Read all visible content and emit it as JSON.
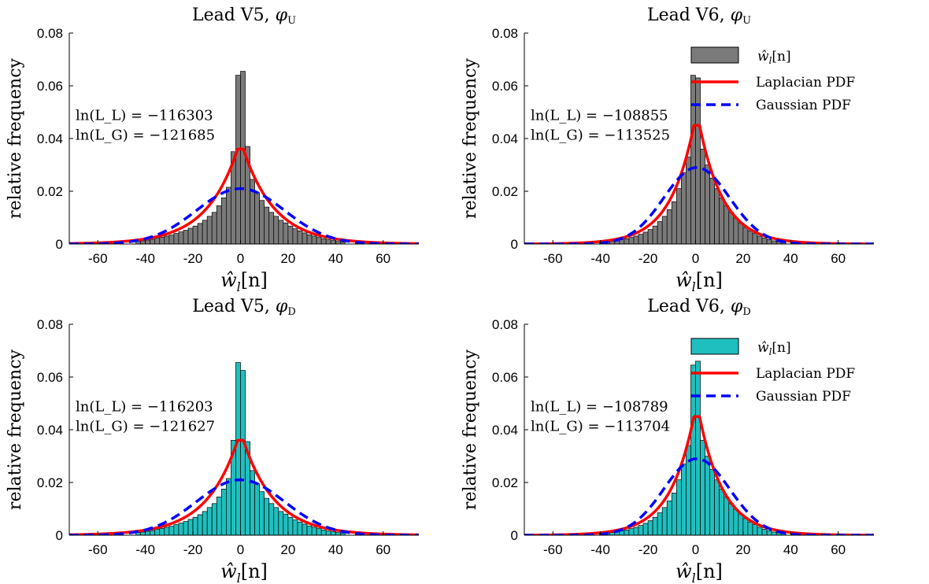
{
  "figure": {
    "background": "#ffffff"
  },
  "chart_data": [
    {
      "type": "bar",
      "title": "Lead V5, φU",
      "title_text": "Lead V5, ",
      "title_symbol": "φ",
      "title_sub": "U",
      "xlabel_main": "ŵ",
      "xlabel_sub": "l",
      "xlabel_tail": "[n]",
      "ylabel": "relative frequency",
      "xlim": [
        -72,
        75
      ],
      "ylim": [
        0,
        0.08
      ],
      "xticks": [
        -60,
        -40,
        -20,
        0,
        20,
        40,
        60
      ],
      "yticks": [
        0,
        0.02,
        0.04,
        0.06,
        0.08
      ],
      "ytick_labels": [
        "0",
        "0.02",
        "0.04",
        "0.06",
        "0.08"
      ],
      "hist_color": "#7a7a7a",
      "bin_width": 2,
      "bin_centers": [
        -43,
        -41,
        -39,
        -37,
        -35,
        -33,
        -31,
        -29,
        -27,
        -25,
        -23,
        -21,
        -19,
        -17,
        -15,
        -13,
        -11,
        -9,
        -7,
        -5,
        -3,
        -1,
        1,
        3,
        5,
        7,
        9,
        11,
        13,
        15,
        17,
        19,
        21,
        23,
        25,
        27,
        29,
        31,
        33,
        35,
        37,
        39,
        41,
        43
      ],
      "values": [
        0.001,
        0.0012,
        0.0015,
        0.0018,
        0.0022,
        0.0026,
        0.003,
        0.0034,
        0.004,
        0.0046,
        0.0052,
        0.006,
        0.0068,
        0.0078,
        0.009,
        0.0105,
        0.012,
        0.0145,
        0.0175,
        0.0215,
        0.035,
        0.064,
        0.0655,
        0.037,
        0.0245,
        0.0195,
        0.0165,
        0.014,
        0.012,
        0.0105,
        0.009,
        0.008,
        0.0068,
        0.0058,
        0.005,
        0.0042,
        0.0035,
        0.003,
        0.0025,
        0.002,
        0.0016,
        0.0013,
        0.001,
        0.0008
      ],
      "laplace": {
        "mu": 0,
        "b": 13.3,
        "peak": 0.036,
        "color": "#ff0000",
        "name": "Laplacian PDF"
      },
      "gauss": {
        "mu": 0,
        "sigma": 18.5,
        "peak": 0.021,
        "color": "#0000ff",
        "name": "Gaussian PDF"
      },
      "annotations": [
        "ln(L_L) = −116303",
        "ln(L_G) = −121685"
      ],
      "legend": null
    },
    {
      "type": "bar",
      "title": "Lead V6, φU",
      "title_text": "Lead V6, ",
      "title_symbol": "φ",
      "title_sub": "U",
      "xlabel_main": "ŵ",
      "xlabel_sub": "l",
      "xlabel_tail": "[n]",
      "ylabel": "relative frequency",
      "xlim": [
        -72,
        75
      ],
      "ylim": [
        0,
        0.08
      ],
      "xticks": [
        -60,
        -40,
        -20,
        0,
        20,
        40,
        60
      ],
      "yticks": [
        0,
        0.02,
        0.04,
        0.06,
        0.08
      ],
      "ytick_labels": [
        "0",
        "0.02",
        "0.04",
        "0.06",
        "0.08"
      ],
      "hist_color": "#7a7a7a",
      "bin_width": 2,
      "bin_centers": [
        -37,
        -35,
        -33,
        -31,
        -29,
        -27,
        -25,
        -23,
        -21,
        -19,
        -17,
        -15,
        -13,
        -11,
        -9,
        -7,
        -5,
        -3,
        -1,
        1,
        3,
        5,
        7,
        9,
        11,
        13,
        15,
        17,
        19,
        21,
        23,
        25,
        27,
        29,
        31,
        33,
        35,
        37
      ],
      "values": [
        0.0008,
        0.001,
        0.0013,
        0.0016,
        0.002,
        0.0025,
        0.003,
        0.0037,
        0.0045,
        0.0055,
        0.0068,
        0.0085,
        0.0105,
        0.013,
        0.016,
        0.021,
        0.027,
        0.033,
        0.064,
        0.063,
        0.036,
        0.03,
        0.025,
        0.021,
        0.0175,
        0.0145,
        0.012,
        0.0098,
        0.008,
        0.0063,
        0.005,
        0.004,
        0.003,
        0.0023,
        0.0017,
        0.0012,
        0.0009,
        0.0006
      ],
      "laplace": {
        "mu": 0.5,
        "b": 10.2,
        "peak": 0.045,
        "color": "#ff0000",
        "name": "Laplacian PDF"
      },
      "gauss": {
        "mu": 0.5,
        "sigma": 13.8,
        "peak": 0.029,
        "color": "#0000ff",
        "name": "Gaussian PDF"
      },
      "annotations": [
        "ln(L_L) = −108855",
        "ln(L_G) = −113525"
      ],
      "legend": {
        "placement": "top-right",
        "hist_label_main": "ŵ",
        "hist_label_sub": "l",
        "hist_label_tail": "[n]",
        "laplace": "Laplacian PDF",
        "gauss": "Gaussian PDF"
      }
    },
    {
      "type": "bar",
      "title": "Lead V5, φD",
      "title_text": "Lead V5, ",
      "title_symbol": "φ",
      "title_sub": "D",
      "xlabel_main": "ŵ",
      "xlabel_sub": "l",
      "xlabel_tail": "[n]",
      "ylabel": "relative frequency",
      "xlim": [
        -72,
        75
      ],
      "ylim": [
        0,
        0.08
      ],
      "xticks": [
        -60,
        -40,
        -20,
        0,
        20,
        40,
        60
      ],
      "yticks": [
        0,
        0.02,
        0.04,
        0.06,
        0.08
      ],
      "ytick_labels": [
        "0",
        "0.02",
        "0.04",
        "0.06",
        "0.08"
      ],
      "hist_color": "#1fbfbf",
      "bin_width": 2,
      "bin_centers": [
        -43,
        -41,
        -39,
        -37,
        -35,
        -33,
        -31,
        -29,
        -27,
        -25,
        -23,
        -21,
        -19,
        -17,
        -15,
        -13,
        -11,
        -9,
        -7,
        -5,
        -3,
        -1,
        1,
        3,
        5,
        7,
        9,
        11,
        13,
        15,
        17,
        19,
        21,
        23,
        25,
        27,
        29,
        31,
        33,
        35,
        37,
        39,
        41,
        43
      ],
      "values": [
        0.001,
        0.0012,
        0.0015,
        0.0018,
        0.0022,
        0.0026,
        0.003,
        0.0034,
        0.004,
        0.0046,
        0.0052,
        0.006,
        0.0068,
        0.0078,
        0.009,
        0.0105,
        0.012,
        0.0145,
        0.0175,
        0.0215,
        0.036,
        0.0655,
        0.0625,
        0.0355,
        0.0245,
        0.0195,
        0.0165,
        0.014,
        0.012,
        0.0105,
        0.009,
        0.008,
        0.0068,
        0.0058,
        0.005,
        0.0042,
        0.0035,
        0.003,
        0.0025,
        0.002,
        0.0016,
        0.0013,
        0.001,
        0.0008
      ],
      "laplace": {
        "mu": 0,
        "b": 13.3,
        "peak": 0.036,
        "color": "#ff0000",
        "name": "Laplacian PDF"
      },
      "gauss": {
        "mu": 0,
        "sigma": 18.5,
        "peak": 0.021,
        "color": "#0000ff",
        "name": "Gaussian PDF"
      },
      "annotations": [
        "ln(L_L) = −116203",
        "ln(L_G) = −121627"
      ],
      "legend": null
    },
    {
      "type": "bar",
      "title": "Lead V6, φD",
      "title_text": "Lead V6, ",
      "title_symbol": "φ",
      "title_sub": "D",
      "xlabel_main": "ŵ",
      "xlabel_sub": "l",
      "xlabel_tail": "[n]",
      "ylabel": "relative frequency",
      "xlim": [
        -72,
        75
      ],
      "ylim": [
        0,
        0.08
      ],
      "xticks": [
        -60,
        -40,
        -20,
        0,
        20,
        40,
        60
      ],
      "yticks": [
        0,
        0.02,
        0.04,
        0.06,
        0.08
      ],
      "ytick_labels": [
        "0",
        "0.02",
        "0.04",
        "0.06",
        "0.08"
      ],
      "hist_color": "#1fbfbf",
      "bin_width": 2,
      "bin_centers": [
        -37,
        -35,
        -33,
        -31,
        -29,
        -27,
        -25,
        -23,
        -21,
        -19,
        -17,
        -15,
        -13,
        -11,
        -9,
        -7,
        -5,
        -3,
        -1,
        1,
        3,
        5,
        7,
        9,
        11,
        13,
        15,
        17,
        19,
        21,
        23,
        25,
        27,
        29,
        31,
        33,
        35,
        37
      ],
      "values": [
        0.0008,
        0.001,
        0.0013,
        0.0016,
        0.002,
        0.0025,
        0.003,
        0.0037,
        0.0045,
        0.0055,
        0.0068,
        0.0085,
        0.0105,
        0.013,
        0.016,
        0.021,
        0.027,
        0.034,
        0.0645,
        0.066,
        0.036,
        0.03,
        0.025,
        0.021,
        0.0175,
        0.0145,
        0.012,
        0.0098,
        0.008,
        0.0063,
        0.005,
        0.004,
        0.003,
        0.0023,
        0.0017,
        0.0012,
        0.0009,
        0.0006
      ],
      "laplace": {
        "mu": 0.5,
        "b": 10.2,
        "peak": 0.045,
        "color": "#ff0000",
        "name": "Laplacian PDF"
      },
      "gauss": {
        "mu": 0.5,
        "sigma": 13.8,
        "peak": 0.029,
        "color": "#0000ff",
        "name": "Gaussian PDF"
      },
      "annotations": [
        "ln(L_L) = −108789",
        "ln(L_G) = −113704"
      ],
      "legend": {
        "placement": "top-right",
        "hist_label_main": "ŵ",
        "hist_label_sub": "l",
        "hist_label_tail": "[n]",
        "laplace": "Laplacian PDF",
        "gauss": "Gaussian PDF"
      }
    }
  ]
}
